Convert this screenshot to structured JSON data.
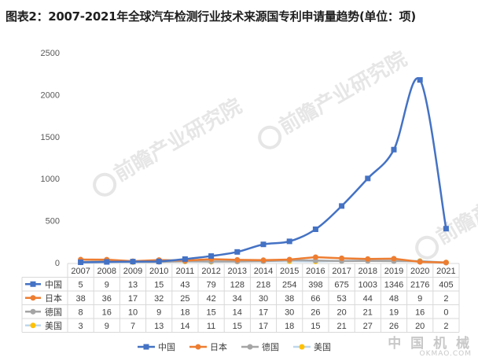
{
  "title": "图表2：2007-2021年全球汽车检测行业技术来源国专利申请量趋势(单位：项)",
  "chart_data": {
    "type": "line",
    "title": "图表2：2007-2021年全球汽车检测行业技术来源国专利申请量趋势(单位：项)",
    "xlabel": "",
    "ylabel": "",
    "categories": [
      "2007",
      "2008",
      "2009",
      "2010",
      "2011",
      "2012",
      "2013",
      "2014",
      "2015",
      "2016",
      "2017",
      "2018",
      "2019",
      "2020",
      "2021"
    ],
    "y_ticks": [
      "2500",
      "2000",
      "1500",
      "1000",
      "500",
      "0"
    ],
    "ylim": [
      0,
      2500
    ],
    "grid": false,
    "legend_position": "bottom",
    "data_table": true,
    "series": [
      {
        "name": "中国",
        "color": "#4472c4",
        "marker": "square",
        "smooth": true,
        "values": [
          5,
          9,
          13,
          15,
          43,
          79,
          128,
          218,
          254,
          398,
          675,
          1003,
          1346,
          2176,
          405
        ]
      },
      {
        "name": "日本",
        "color": "#ed7d31",
        "marker": "circle",
        "smooth": false,
        "values": [
          38,
          36,
          17,
          32,
          25,
          42,
          34,
          30,
          38,
          66,
          53,
          44,
          48,
          9,
          2
        ]
      },
      {
        "name": "德国",
        "color": "#a5a5a5",
        "marker": "circle",
        "smooth": false,
        "values": [
          8,
          16,
          10,
          9,
          18,
          15,
          14,
          17,
          30,
          26,
          20,
          21,
          19,
          16,
          0
        ]
      },
      {
        "name": "美国",
        "color": "#ffc000",
        "marker": "circle",
        "smooth": false,
        "line_color": "#bdd7ee",
        "values": [
          3,
          9,
          7,
          13,
          14,
          11,
          15,
          17,
          18,
          15,
          21,
          27,
          26,
          20,
          2
        ]
      }
    ]
  },
  "watermark": {
    "publisher": "前瞻产业研究院",
    "site_name": "中 国 机 械",
    "site_url": "OKMAO.COM"
  }
}
